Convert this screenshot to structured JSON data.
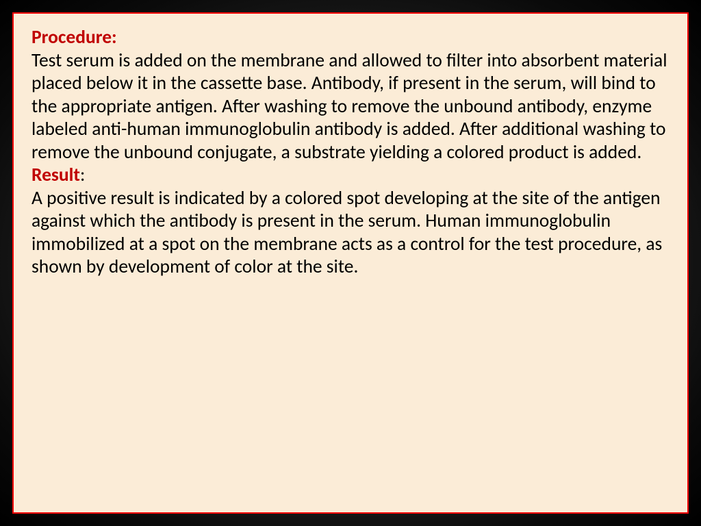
{
  "slide": {
    "background_color": "#fbecd7",
    "border_color": "#ff0000",
    "border_width": 2,
    "heading_color": "#c00000",
    "body_color": "#000000",
    "font_family": "Calibri",
    "font_size_pt": 21,
    "line_height": 1.22,
    "outer_background": "radial-gradient dark vignette",
    "sections": [
      {
        "heading": "Procedure:",
        "body": "Test serum is added on the membrane and allowed to filter into absorbent material placed below it in the cassette base. Antibody, if present in the serum, will bind to the appropriate antigen. After washing to remove the unbound antibody, enzyme labeled anti-human immunoglobulin antibody is added. After additional washing to remove the unbound conjugate, a substrate yielding a colored product is added."
      },
      {
        "heading": "Result",
        "heading_suffix": ":",
        "body": "A positive result is indicated by a colored spot developing at the site of the antigen against which the antibody is present in the serum. Human immunoglobulin immobilized at a spot on the membrane acts as a control for the test procedure, as shown by development of color at the site."
      }
    ]
  }
}
